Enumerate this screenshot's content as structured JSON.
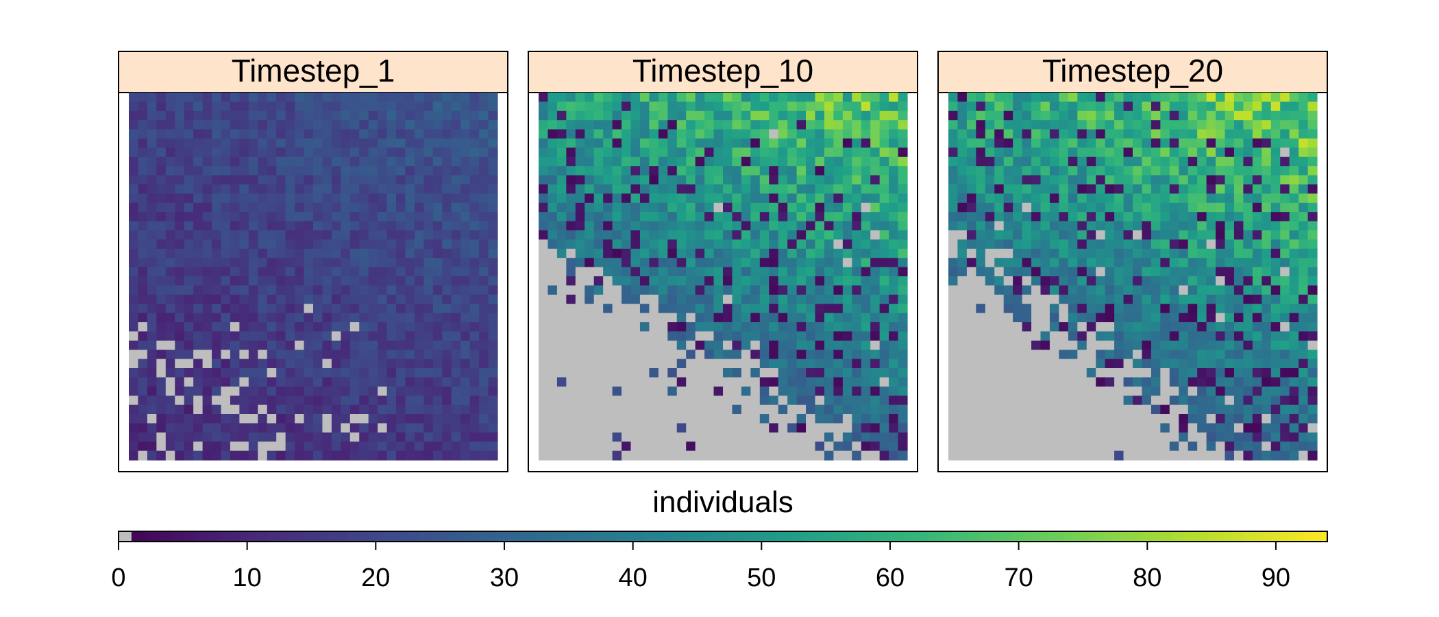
{
  "chart_data": {
    "type": "heatmap",
    "title": "",
    "grid": {
      "rows": 40,
      "cols": 40
    },
    "zero_color": "#bebebe",
    "panels": [
      {
        "label": "Timestep_1",
        "value_range": [
          0,
          30
        ]
      },
      {
        "label": "Timestep_10",
        "value_range": [
          0,
          85
        ]
      },
      {
        "label": "Timestep_20",
        "value_range": [
          0,
          90
        ]
      }
    ],
    "legend": {
      "title": "individuals",
      "placement": "bottom",
      "range": [
        0,
        94
      ],
      "ticks": [
        0,
        10,
        20,
        30,
        40,
        50,
        60,
        70,
        80,
        90
      ],
      "palette": "viridis",
      "palette_stops": [
        "#440154",
        "#482878",
        "#3E4A89",
        "#31688E",
        "#26828E",
        "#1F9E89",
        "#35B779",
        "#6DCD59",
        "#B4DE2C",
        "#FDE725"
      ]
    },
    "strip_color": "#ffe4cc"
  }
}
